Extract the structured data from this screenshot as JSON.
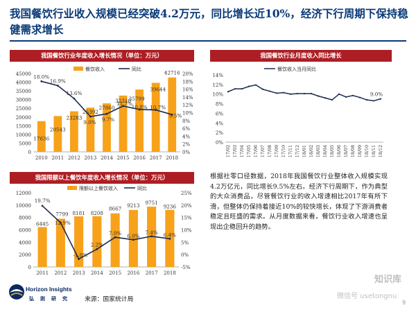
{
  "page": {
    "title": "我国餐饮行业收入规模已经突破4.2万元，同比增长近10%，经济下行周期下保持稳健需求增长",
    "body_text": "根据社零口径数据，2018年我国餐饮行业整体收入规模实现4.2万亿元，同比增长9.5%左右。经济下行周期下，作为典型的大众消费品，尽管餐饮行业的收入增速相比2017年有所下滑，但整体仍保持着接近10%的较快增长，体现了下游消费者稳定且旺盛的需求。从月度数据来看，餐饮行业收入增速也呈现出企稳回升的趋势。",
    "source": "来源：国家统计局",
    "logo_en": "Horizon Insights",
    "logo_cn": "弘则研究",
    "watermark": "知识库",
    "watermark_sub": "微信号 usetongnu",
    "page_number": "9",
    "colors": {
      "title": "#0a3a78",
      "header_bg": "#ad1e24",
      "bar": "#f7a21a",
      "line": "#1a2a4e"
    }
  },
  "chart_data": [
    {
      "type": "bar",
      "title": "我国餐饮行业年度收入增长情况（单位：万元）",
      "categories": [
        "2010",
        "2011",
        "2012",
        "2013",
        "2014",
        "2015",
        "2016",
        "2017",
        "2018"
      ],
      "series": [
        {
          "name": "餐饮收入",
          "kind": "bar",
          "axis": "left",
          "values": [
            17636,
            20543,
            23283,
            25392,
            27860,
            32310,
            35799,
            39644,
            42716
          ],
          "labels": [
            "17636",
            "20543",
            "23283",
            "25392",
            "27860",
            "32310",
            "35799",
            "39644",
            "42716"
          ]
        },
        {
          "name": "同比",
          "kind": "line",
          "axis": "right",
          "values": [
            18.0,
            16.9,
            13.6,
            9.0,
            9.7,
            11.7,
            10.8,
            10.7,
            9.5
          ],
          "labels": [
            "18.0%",
            "16.9%",
            "13.6%",
            "9.0%",
            "9.7%",
            "11.7%",
            "10.8%",
            "10.7%",
            "9.5%"
          ]
        }
      ],
      "ylim_left": [
        0,
        45000
      ],
      "yticks_left": [
        "0",
        "5000",
        "10000",
        "15000",
        "20000",
        "25000",
        "30000",
        "35000",
        "40000",
        "45000"
      ],
      "ylim_right": [
        0,
        20
      ],
      "yticks_right": [
        "0%",
        "2%",
        "4%",
        "6%",
        "8%",
        "10%",
        "12%",
        "14%",
        "16%",
        "18%",
        "20%"
      ]
    },
    {
      "type": "line",
      "title": "我国餐饮行业月度收入同比增长",
      "categories": [
        "17/02",
        "17/03",
        "17/04",
        "17/05",
        "17/06",
        "17/07",
        "17/08",
        "17/09",
        "17/10",
        "17/11",
        "17/12",
        "18/01",
        "18/02",
        "18/03",
        "18/04",
        "18/05",
        "18/06",
        "18/07",
        "18/08",
        "18/09",
        "18/10",
        "18/11",
        "18/12"
      ],
      "series": [
        {
          "name": "餐饮收入当月同比",
          "values": [
            10.5,
            11.1,
            11.1,
            11.6,
            11.9,
            11.0,
            10.6,
            10.2,
            10.3,
            10.0,
            10.1,
            10.1,
            10.1,
            9.6,
            9.2,
            8.8,
            10.0,
            9.4,
            9.7,
            9.3,
            8.8,
            8.6,
            9.0
          ],
          "end_label": "9.0%"
        }
      ],
      "ylim": [
        0,
        14
      ],
      "yticks": [
        "0%",
        "2%",
        "4%",
        "6%",
        "8%",
        "10%",
        "12%",
        "14%"
      ]
    },
    {
      "type": "bar",
      "title": "我国限额以上餐饮年度收入增长情况（单位：万元）",
      "categories": [
        "2011",
        "2012",
        "2013",
        "2014",
        "2015",
        "2016",
        "2017",
        "2018"
      ],
      "series": [
        {
          "name": "限额以上餐饮收入",
          "kind": "bar",
          "axis": "left",
          "values": [
            6445,
            7799,
            8181,
            8208,
            8667,
            9213,
            9751,
            9236
          ],
          "labels": [
            "6445",
            "7799",
            "8181",
            "8208",
            "8667",
            "9213",
            "9751",
            "9236"
          ]
        },
        {
          "name": "同比",
          "kind": "line",
          "axis": "right",
          "values": [
            19.7,
            12.9,
            -1.8,
            2.2,
            7.0,
            6.0,
            7.4,
            6.4
          ],
          "labels": [
            "19.7%",
            "12.9%",
            "-1.8%",
            "2.2%",
            "7.0%",
            "6.0%",
            "7.4%",
            "6.4%"
          ]
        }
      ],
      "ylim_left": [
        0,
        12000
      ],
      "yticks_left": [
        "0",
        "2000",
        "4000",
        "6000",
        "8000",
        "10000",
        "12000"
      ],
      "ylim_right": [
        -5,
        25
      ],
      "yticks_right": [
        "-5%",
        "0%",
        "5%",
        "10%",
        "15%",
        "20%",
        "25%"
      ]
    }
  ]
}
